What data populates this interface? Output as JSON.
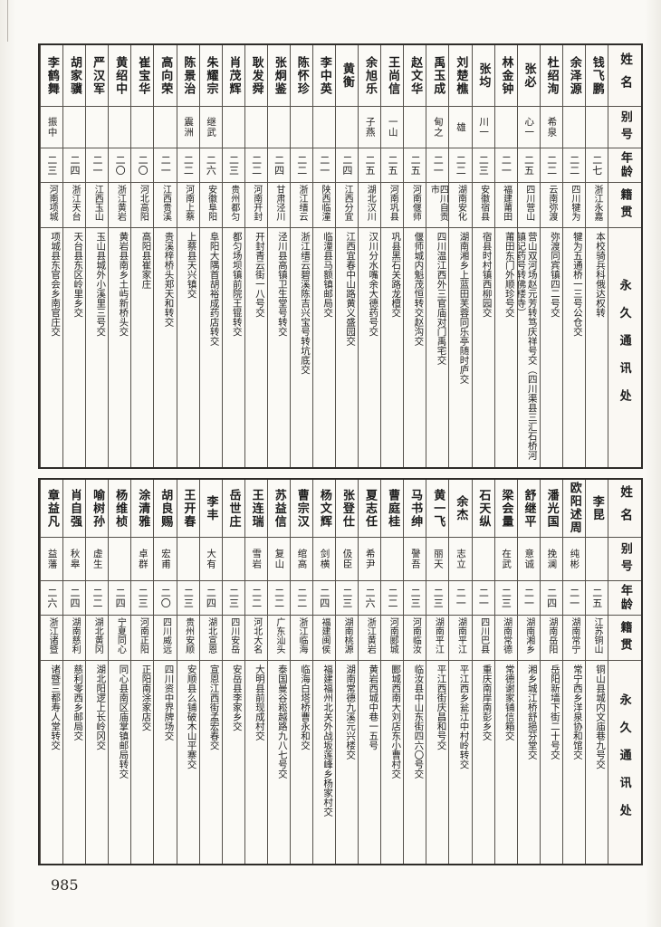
{
  "page_number": "985",
  "headers": {
    "name": "姓名",
    "alias": "别号",
    "age": "年龄",
    "native": "籍贯",
    "address": "永久通讯处"
  },
  "tables": [
    {
      "people": [
        {
          "name": "钱飞鹏",
          "alias": "",
          "age": "二七",
          "native": "浙江永嘉",
          "address": "本校骑兵科俄达权转"
        },
        {
          "name": "余泽源",
          "alias": "",
          "age": "二二",
          "native": "四川犍为",
          "address": "犍为五通桥一三号公仓交"
        },
        {
          "name": "杜绍洵",
          "alias": "希泉",
          "age": "二二",
          "native": "云南弥渡",
          "address": "弥渡同宾镇四二号交"
        },
        {
          "name": "张必",
          "alias": "心一",
          "age": "二五",
          "native": "四川营山",
          "address": "营山双河场赵元芳转笃庆祥号交（四川渠县三汇石桥河镇记药号转佛楼寺）"
        },
        {
          "name": "林金钟",
          "alias": "",
          "age": "二一",
          "native": "福建莆田",
          "address": "莆田东门外顺珍号交"
        },
        {
          "name": "张均",
          "alias": "川一",
          "age": "二三",
          "native": "安徽宿县",
          "address": "宿县时村镇西柳园交"
        },
        {
          "name": "刘楚樵",
          "alias": "雄",
          "age": "二二",
          "native": "湖南安化",
          "address": "湖南湘乡上蓝田芙蓉同乐亭随时庐交"
        },
        {
          "name": "禹玉成",
          "alias": "甸之",
          "age": "二一",
          "native": "四川自贡市",
          "address": "四川温江西外三官庙对门禹宅交"
        },
        {
          "name": "赵文华",
          "alias": "",
          "age": "二五",
          "native": "河南偃师",
          "address": "偃师城内魁茂恒转交赵沟交"
        },
        {
          "name": "王尚信",
          "alias": "一山",
          "age": "二五",
          "native": "河南巩县",
          "address": "巩县黑石关路龙檀交"
        },
        {
          "name": "余旭乐",
          "alias": "子燕",
          "age": "二五",
          "native": "湖北汉川",
          "address": "汉川分水嘴余大德药号交"
        },
        {
          "name": "黄衡",
          "alias": "",
          "age": "二四",
          "native": "江西分宜",
          "address": "江西宜春中山路黄义盛园交"
        },
        {
          "name": "李中英",
          "alias": "",
          "age": "二一",
          "native": "陕西临潼",
          "address": "临潼县马额镇邮局交"
        },
        {
          "name": "陈怀珍",
          "alias": "",
          "age": "二二",
          "native": "浙江缙云",
          "address": "浙江缙云碧溪陈吉兴宝号转坑底交"
        },
        {
          "name": "张炯鉴",
          "alias": "",
          "age": "二四",
          "native": "甘肃泾川",
          "address": "泾川县高镇卫生堂号转交"
        },
        {
          "name": "耿发舜",
          "alias": "",
          "age": "二二",
          "native": "河南开封",
          "address": "开封青云街一八号交"
        },
        {
          "name": "肖茂辉",
          "alias": "",
          "age": "二三",
          "native": "贵州都匀",
          "address": "都匀场坝镇前院王锟转交"
        },
        {
          "name": "朱耀宗",
          "alias": "继武",
          "age": "二六",
          "native": "安徽阜阳",
          "address": "阜阳大隅首胡裕成药店转交"
        },
        {
          "name": "陈景治",
          "alias": "震洲",
          "age": "二二",
          "native": "河南上蔡",
          "address": "上蔡县天兴镇交"
        },
        {
          "name": "高向荣",
          "alias": "",
          "age": "二一",
          "native": "江西贵溪",
          "address": "贵溪梓桥头郑天和转交"
        },
        {
          "name": "崔宝华",
          "alias": "",
          "age": "二〇",
          "native": "河北高阳",
          "address": "高阳县崔家庄"
        },
        {
          "name": "黄绍中",
          "alias": "",
          "age": "二〇",
          "native": "浙江黄岩",
          "address": "黄岩县南乡土屿新桥头交"
        },
        {
          "name": "严汉军",
          "alias": "",
          "age": "二一",
          "native": "江西玉山",
          "address": "玉山县城外小溪里三号交"
        },
        {
          "name": "胡家骥",
          "alias": "",
          "age": "二四",
          "native": "浙江天台",
          "address": "天台县东区岭里乡交"
        },
        {
          "name": "李鹤舞",
          "alias": "振中",
          "age": "二三",
          "native": "河南项城",
          "address": "项城县东官会乡南官庄交"
        }
      ]
    },
    {
      "people": [
        {
          "name": "李昆",
          "alias": "",
          "age": "二五",
          "native": "江苏铜山",
          "address": "铜山县城内文庙巷九号交"
        },
        {
          "name": "欧阳述周",
          "alias": "纯彬",
          "age": "二一",
          "native": "湖南常宁",
          "address": "常宁西乡洋泉协和馆交"
        },
        {
          "name": "潘光国",
          "alias": "挽澜",
          "age": "二四",
          "native": "湖南岳阳",
          "address": "岳阳新墙下街二十号交"
        },
        {
          "name": "舒继平",
          "alias": "意诚",
          "age": "二一",
          "native": "湖南湘乡",
          "address": "湘乡城江桥舒挹芬堂交"
        },
        {
          "name": "梁会量",
          "alias": "在武",
          "age": "二三",
          "native": "湖南常德",
          "address": "常德谢家铺信箱交"
        },
        {
          "name": "石天纵",
          "alias": "",
          "age": "二一",
          "native": "四川巴县",
          "address": "重庆南岸南彭乡交"
        },
        {
          "name": "余杰",
          "alias": "志立",
          "age": "二一",
          "native": "湖南平江",
          "address": "平江西乡瓮江中村岭转交"
        },
        {
          "name": "黄一飞",
          "alias": "丽天",
          "age": "二三",
          "native": "湖南平江",
          "address": "平江西街庆昌和号交"
        },
        {
          "name": "马书绅",
          "alias": "謦吾",
          "age": "二三",
          "native": "河南临汝",
          "address": "临汝县中山东街四六〇号交"
        },
        {
          "name": "曹庭桂",
          "alias": "",
          "age": "二二",
          "native": "河南郾城",
          "address": "郾城西南大刘店东小曹村交"
        },
        {
          "name": "夏志任",
          "alias": "希尹",
          "age": "二六",
          "native": "浙江黄岩",
          "address": "黄岩西城中巷一五号"
        },
        {
          "name": "张登仕",
          "alias": "伋臣",
          "age": "二三",
          "native": "湖南桃源",
          "address": "湖南常德九溪元兴楼交"
        },
        {
          "name": "杨文辉",
          "alias": "剑横",
          "age": "二四",
          "native": "福建闽侯",
          "address": "福建福州北关外战坂莲峰乡杨家村交"
        },
        {
          "name": "曹宗汉",
          "alias": "绾高",
          "age": "二二",
          "native": "浙江临海",
          "address": "临海白塔桥曹永和交"
        },
        {
          "name": "苏益信",
          "alias": "复山",
          "age": "二二",
          "native": "广东汕头",
          "address": "泰国曼谷崧越路九八七号交"
        },
        {
          "name": "王连瑞",
          "alias": "雪岩",
          "age": "二二",
          "native": "河北大名",
          "address": "大明县前现成村交"
        },
        {
          "name": "岳世庄",
          "alias": "",
          "age": "二三",
          "native": "四川安岳",
          "address": "安岳县李家乡交"
        },
        {
          "name": "李丰",
          "alias": "大有",
          "age": "二四",
          "native": "湖北宣恩",
          "address": "宣恩江西街孟宏春交"
        },
        {
          "name": "王开春",
          "alias": "",
          "age": "二三",
          "native": "贵州安顺",
          "address": "安顺县么铺破木山平寨交"
        },
        {
          "name": "胡良赐",
          "alias": "宏甫",
          "age": "二〇",
          "native": "四川威远",
          "address": "四川资中界牌场交"
        },
        {
          "name": "涂清雅",
          "alias": "卓群",
          "age": "二三",
          "native": "河南正阳",
          "address": "正阳南涂家店交"
        },
        {
          "name": "杨维桢",
          "alias": "",
          "age": "二四",
          "native": "宁夏同心",
          "address": "同心县南区庙掌镇邮局转交"
        },
        {
          "name": "喻树孙",
          "alias": "虚生",
          "age": "二二",
          "native": "湖北黄冈",
          "address": "湖北阳逻上长岭冈交"
        },
        {
          "name": "肖自强",
          "alias": "秋皋",
          "age": "二四",
          "native": "湖南慈利",
          "address": "慈利零西乡邮局交"
        },
        {
          "name": "章益凡",
          "alias": "益藩",
          "age": "二六",
          "native": "浙江诸暨",
          "address": "诸暨三都寿人堂转交"
        }
      ]
    }
  ]
}
